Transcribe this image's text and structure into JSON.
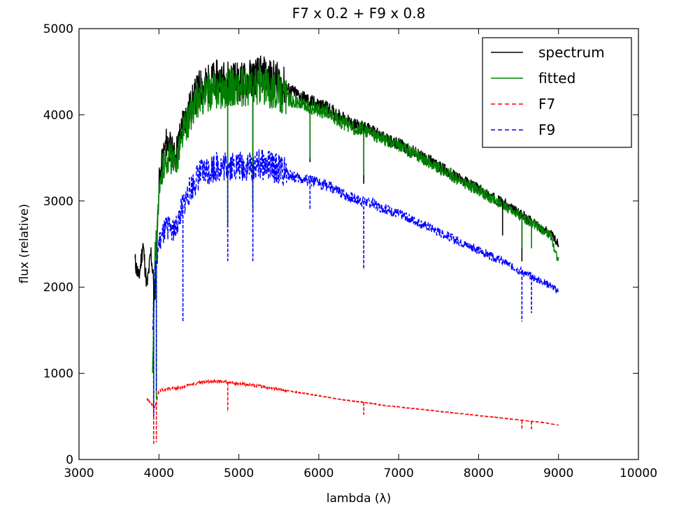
{
  "chart_data": {
    "type": "line",
    "title": "F7 x 0.2 + F9 x 0.8",
    "xlabel": "lambda (λ)",
    "ylabel": "flux (relative)",
    "xlim": [
      3000,
      10000
    ],
    "ylim": [
      0,
      5000
    ],
    "xticks": [
      3000,
      4000,
      5000,
      6000,
      7000,
      8000,
      9000,
      10000
    ],
    "yticks": [
      0,
      1000,
      2000,
      3000,
      4000,
      5000
    ],
    "legend_position": "top-right",
    "series": [
      {
        "name": "spectrum",
        "color": "#000000",
        "style": "solid",
        "x": [
          3700,
          3750,
          3800,
          3850,
          3900,
          3950,
          4000,
          4050,
          4100,
          4150,
          4200,
          4300,
          4400,
          4500,
          4600,
          4700,
          4800,
          4900,
          5000,
          5100,
          5200,
          5300,
          5400,
          5500,
          5600,
          5700,
          5800,
          5900,
          6000,
          6100,
          6200,
          6300,
          6400,
          6500,
          6600,
          6700,
          6800,
          6900,
          7000,
          7100,
          7200,
          7300,
          7400,
          7500,
          7600,
          7700,
          7800,
          7900,
          8000,
          8100,
          8200,
          8300,
          8400,
          8500,
          8600,
          8700,
          8800,
          8900,
          9000
        ],
        "y": [
          2300,
          2100,
          2500,
          2000,
          2400,
          1900,
          3200,
          3500,
          3700,
          3600,
          3500,
          3900,
          4100,
          4300,
          4350,
          4400,
          4400,
          4420,
          4380,
          4400,
          4450,
          4450,
          4420,
          4380,
          4300,
          4250,
          4200,
          4150,
          4120,
          4080,
          4020,
          3960,
          3900,
          3860,
          3840,
          3790,
          3740,
          3700,
          3660,
          3610,
          3560,
          3510,
          3460,
          3400,
          3350,
          3290,
          3240,
          3190,
          3140,
          3080,
          3030,
          2980,
          2920,
          2860,
          2800,
          2740,
          2680,
          2620,
          2500
        ]
      },
      {
        "name": "fitted",
        "color": "#008000",
        "style": "solid",
        "x": [
          3920,
          3950,
          4000,
          4050,
          4100,
          4150,
          4200,
          4300,
          4400,
          4500,
          4600,
          4700,
          4800,
          4900,
          5000,
          5100,
          5200,
          5300,
          5400,
          5500,
          5600,
          5700,
          5800,
          5900,
          6000,
          6100,
          6200,
          6300,
          6400,
          6500,
          6600,
          6700,
          6800,
          6900,
          7000,
          7100,
          7200,
          7300,
          7400,
          7500,
          7600,
          7700,
          7800,
          7900,
          8000,
          8100,
          8200,
          8300,
          8400,
          8500,
          8600,
          8700,
          8800,
          8900,
          9000
        ],
        "y": [
          1000,
          2400,
          3000,
          3400,
          3500,
          3500,
          3400,
          3800,
          4000,
          4200,
          4250,
          4300,
          4300,
          4330,
          4300,
          4310,
          4330,
          4330,
          4300,
          4260,
          4200,
          4150,
          4110,
          4080,
          4060,
          4030,
          3970,
          3910,
          3860,
          3830,
          3810,
          3770,
          3720,
          3680,
          3640,
          3590,
          3540,
          3490,
          3440,
          3380,
          3330,
          3270,
          3220,
          3170,
          3120,
          3060,
          3010,
          2960,
          2900,
          2840,
          2780,
          2720,
          2660,
          2600,
          2300
        ]
      },
      {
        "name": "F7",
        "color": "#ff0000",
        "style": "dashed",
        "x": [
          3850,
          3900,
          3950,
          4000,
          4100,
          4200,
          4300,
          4400,
          4500,
          4600,
          4700,
          4800,
          4900,
          5000,
          5200,
          5400,
          5600,
          5800,
          6000,
          6200,
          6400,
          6600,
          6800,
          7000,
          7200,
          7400,
          7600,
          7800,
          8000,
          8200,
          8400,
          8600,
          8800,
          9000
        ],
        "y": [
          700,
          650,
          600,
          800,
          820,
          830,
          840,
          870,
          890,
          900,
          910,
          905,
          890,
          880,
          860,
          830,
          800,
          770,
          740,
          710,
          680,
          660,
          630,
          610,
          590,
          570,
          550,
          530,
          510,
          490,
          470,
          450,
          430,
          400
        ]
      },
      {
        "name": "F9",
        "color": "#0000ff",
        "style": "dashed",
        "x": [
          3920,
          3950,
          4000,
          4050,
          4100,
          4150,
          4200,
          4300,
          4400,
          4500,
          4600,
          4700,
          4800,
          4900,
          5000,
          5100,
          5200,
          5300,
          5400,
          5500,
          5600,
          5700,
          5800,
          5900,
          6000,
          6100,
          6200,
          6300,
          6400,
          6500,
          6600,
          6700,
          6800,
          6900,
          7000,
          7100,
          7200,
          7300,
          7400,
          7500,
          7600,
          7700,
          7800,
          7900,
          8000,
          8100,
          8200,
          8300,
          8400,
          8500,
          8600,
          8700,
          8800,
          8900,
          9000
        ],
        "y": [
          1500,
          2200,
          2500,
          2600,
          2700,
          2700,
          2650,
          2950,
          3150,
          3300,
          3350,
          3400,
          3400,
          3420,
          3400,
          3400,
          3420,
          3420,
          3400,
          3370,
          3320,
          3280,
          3250,
          3230,
          3210,
          3180,
          3130,
          3080,
          3040,
          3010,
          2990,
          2960,
          2920,
          2880,
          2850,
          2810,
          2770,
          2730,
          2690,
          2640,
          2600,
          2550,
          2510,
          2470,
          2430,
          2380,
          2340,
          2300,
          2250,
          2200,
          2150,
          2100,
          2060,
          2020,
          1950
        ]
      }
    ],
    "absorption_lines": [
      {
        "series": "spectrum",
        "x": 3934,
        "y": 1300
      },
      {
        "series": "spectrum",
        "x": 4861,
        "y": 2700
      },
      {
        "series": "spectrum",
        "x": 5175,
        "y": 3000
      },
      {
        "series": "spectrum",
        "x": 5890,
        "y": 3450
      },
      {
        "series": "spectrum",
        "x": 6563,
        "y": 3200
      },
      {
        "series": "spectrum",
        "x": 8300,
        "y": 2600
      },
      {
        "series": "spectrum",
        "x": 8542,
        "y": 2300
      },
      {
        "series": "fitted",
        "x": 3934,
        "y": 600
      },
      {
        "series": "fitted",
        "x": 3968,
        "y": 700
      },
      {
        "series": "fitted",
        "x": 4861,
        "y": 2700
      },
      {
        "series": "fitted",
        "x": 5175,
        "y": 2900
      },
      {
        "series": "fitted",
        "x": 5890,
        "y": 3500
      },
      {
        "series": "fitted",
        "x": 6563,
        "y": 3300
      },
      {
        "series": "fitted",
        "x": 8542,
        "y": 2450
      },
      {
        "series": "fitted",
        "x": 8662,
        "y": 2450
      },
      {
        "series": "F7",
        "x": 3934,
        "y": 180
      },
      {
        "series": "F7",
        "x": 3968,
        "y": 200
      },
      {
        "series": "F7",
        "x": 4861,
        "y": 550
      },
      {
        "series": "F7",
        "x": 6563,
        "y": 520
      },
      {
        "series": "F7",
        "x": 8542,
        "y": 340
      },
      {
        "series": "F7",
        "x": 8662,
        "y": 350
      },
      {
        "series": "F9",
        "x": 3934,
        "y": 500
      },
      {
        "series": "F9",
        "x": 3968,
        "y": 800
      },
      {
        "series": "F9",
        "x": 4300,
        "y": 1600
      },
      {
        "series": "F9",
        "x": 4861,
        "y": 2300
      },
      {
        "series": "F9",
        "x": 5175,
        "y": 2300
      },
      {
        "series": "F9",
        "x": 5890,
        "y": 2900
      },
      {
        "series": "F9",
        "x": 6563,
        "y": 2200
      },
      {
        "series": "F9",
        "x": 8542,
        "y": 1600
      },
      {
        "series": "F9",
        "x": 8662,
        "y": 1700
      }
    ]
  }
}
